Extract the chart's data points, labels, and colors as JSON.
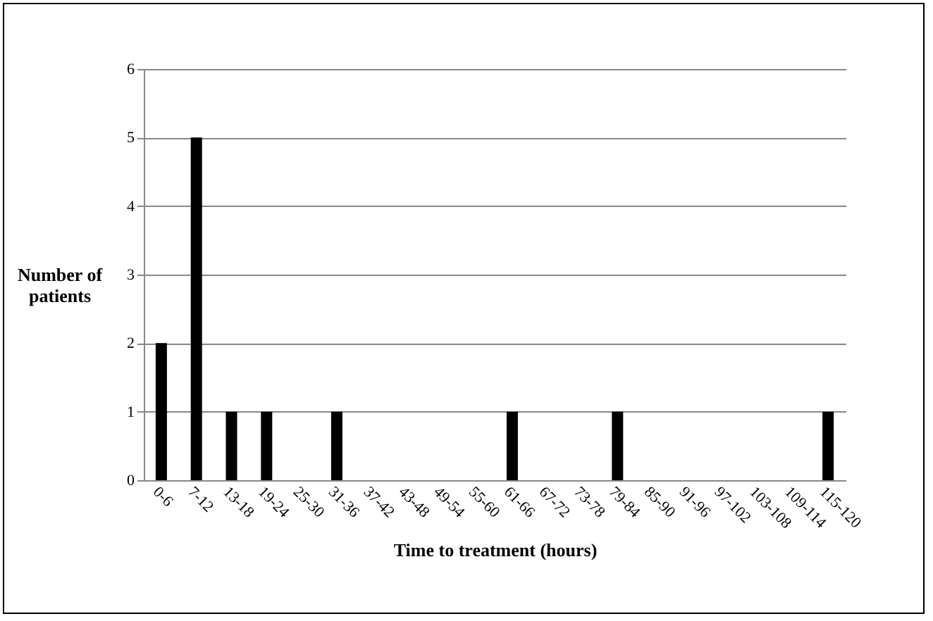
{
  "chart_data": {
    "type": "bar",
    "xlabel": "Time to treatment (hours)",
    "ylabel": "Number of patients",
    "categories": [
      "0-6",
      "7-12",
      "13-18",
      "19-24",
      "25-30",
      "31-36",
      "37-42",
      "43-48",
      "49-54",
      "55-60",
      "61-66",
      "67-72",
      "73-78",
      "79-84",
      "85-90",
      "91-96",
      "97-102",
      "103-108",
      "109-114",
      "115-120"
    ],
    "values": [
      2,
      5,
      1,
      1,
      0,
      1,
      0,
      0,
      0,
      0,
      1,
      0,
      0,
      1,
      0,
      0,
      0,
      0,
      0,
      1
    ],
    "color": "#000000",
    "ylim": [
      0,
      6
    ],
    "yticks": [
      0,
      1,
      2,
      3,
      4,
      5,
      6
    ],
    "grid": "y"
  }
}
